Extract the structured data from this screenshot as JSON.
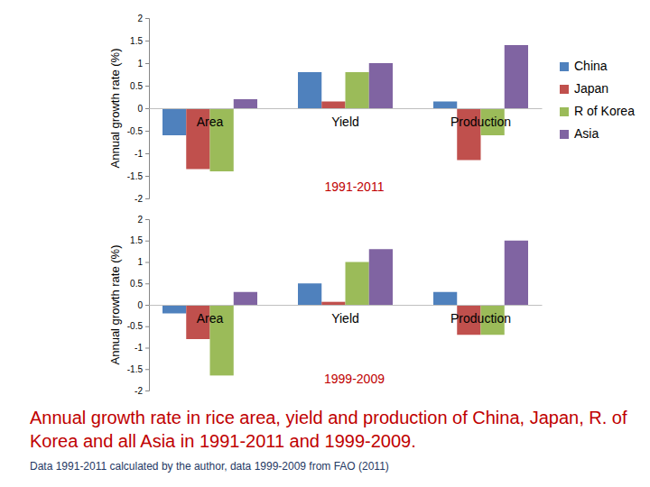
{
  "chart_data": [
    {
      "type": "bar",
      "y_label": "Annual growth rate (%)",
      "annotation": "1991-2011",
      "categories": [
        "Area",
        "Yield",
        "Production"
      ],
      "series": [
        {
          "name": "China",
          "color": "#4f81bd",
          "values": [
            -0.6,
            0.8,
            0.15
          ]
        },
        {
          "name": "Japan",
          "color": "#c0504d",
          "values": [
            -1.35,
            0.15,
            -1.15
          ]
        },
        {
          "name": "R of Korea",
          "color": "#9bbb59",
          "values": [
            -1.4,
            0.8,
            -0.6
          ]
        },
        {
          "name": "Asia",
          "color": "#8064a2",
          "values": [
            0.2,
            1.0,
            1.4
          ]
        }
      ],
      "ylim": [
        -2,
        2
      ],
      "yticks": [
        -2,
        -1.5,
        -1,
        -0.5,
        0,
        0.5,
        1,
        1.5,
        2
      ],
      "grid": false,
      "legend": "right"
    },
    {
      "type": "bar",
      "y_label": "Annual growth rate (%)",
      "annotation": "1999-2009",
      "categories": [
        "Area",
        "Yield",
        "Production"
      ],
      "series": [
        {
          "color": "#4f81bd",
          "values": [
            -0.2,
            0.5,
            0.3
          ]
        },
        {
          "color": "#c0504d",
          "values": [
            -0.8,
            0.07,
            -0.7
          ]
        },
        {
          "color": "#9bbb59",
          "values": [
            -1.65,
            1.0,
            -0.7
          ]
        },
        {
          "color": "#8064a2",
          "values": [
            0.3,
            1.3,
            1.5
          ]
        }
      ],
      "ylim": [
        -2,
        2
      ],
      "yticks": [
        -2,
        -1.5,
        -1,
        -0.5,
        0,
        0.5,
        1,
        1.5,
        2
      ],
      "grid": false
    }
  ],
  "caption": "Annual growth rate in rice area, yield and production of China, Japan, R. of Korea and all Asia in 1991-2011 and 1999-2009.",
  "note": "Data 1991-2011 calculated by the author, data 1999-2009 from FAO (2011)"
}
